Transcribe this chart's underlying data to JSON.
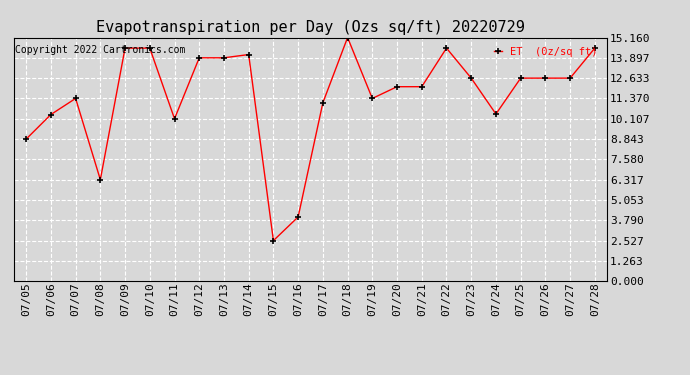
{
  "title": "Evapotranspiration per Day (Ozs sq/ft) 20220729",
  "copyright": "Copyright 2022 Cartronics.com",
  "legend_label": "ET  (0z/sq ft)",
  "dates": [
    "07/05",
    "07/06",
    "07/07",
    "07/08",
    "07/09",
    "07/10",
    "07/11",
    "07/12",
    "07/13",
    "07/14",
    "07/15",
    "07/16",
    "07/17",
    "07/18",
    "07/19",
    "07/20",
    "07/21",
    "07/22",
    "07/23",
    "07/24",
    "07/25",
    "07/26",
    "07/27",
    "07/28"
  ],
  "values": [
    8.843,
    10.37,
    11.37,
    6.317,
    14.5,
    14.5,
    10.107,
    13.897,
    13.897,
    14.1,
    2.527,
    4.0,
    11.1,
    15.16,
    11.37,
    12.1,
    12.1,
    14.5,
    12.633,
    10.4,
    12.633,
    12.633,
    12.633,
    14.5
  ],
  "yticks": [
    0.0,
    1.263,
    2.527,
    3.79,
    5.053,
    6.317,
    7.58,
    8.843,
    10.107,
    11.37,
    12.633,
    13.897,
    15.16
  ],
  "ymin": 0.0,
  "ymax": 15.16,
  "line_color": "red",
  "marker_color": "black",
  "background_color": "#d8d8d8",
  "grid_color": "white",
  "title_fontsize": 11,
  "copyright_fontsize": 7,
  "legend_color": "red",
  "tick_label_fontsize": 8
}
